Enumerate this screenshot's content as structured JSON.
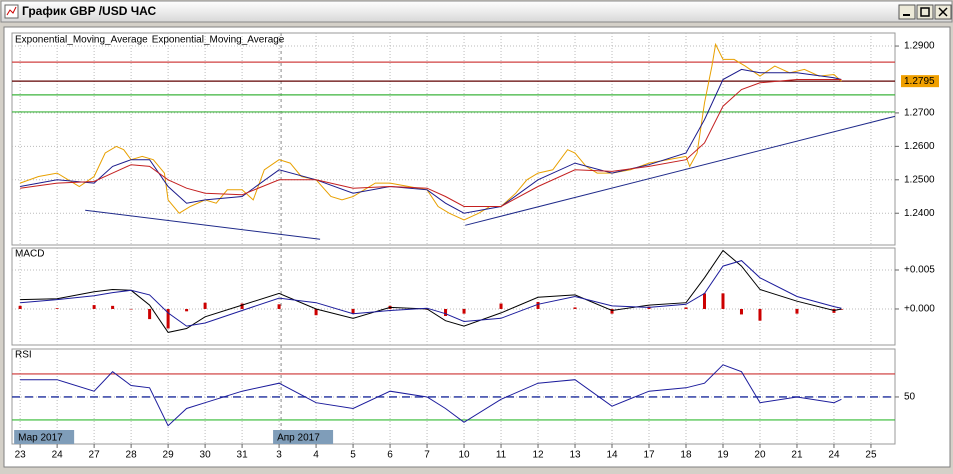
{
  "window": {
    "title": "График GBP /USD  ЧАС"
  },
  "x_axis": {
    "xlim": [
      -0.22,
      23.65
    ],
    "grid": true,
    "xticks": [
      {
        "value": 0,
        "label": "23"
      },
      {
        "value": 1,
        "label": "24"
      },
      {
        "value": 2,
        "label": "27"
      },
      {
        "value": 3,
        "label": "28"
      },
      {
        "value": 4,
        "label": "29"
      },
      {
        "value": 5,
        "label": "30"
      },
      {
        "value": 6,
        "label": "31"
      },
      {
        "value": 7,
        "label": "3"
      },
      {
        "value": 8,
        "label": "4"
      },
      {
        "value": 9,
        "label": "5"
      },
      {
        "value": 10,
        "label": "6"
      },
      {
        "value": 11,
        "label": "7"
      },
      {
        "value": 12,
        "label": "10"
      },
      {
        "value": 13,
        "label": "11"
      },
      {
        "value": 14,
        "label": "12"
      },
      {
        "value": 15,
        "label": "13"
      },
      {
        "value": 16,
        "label": "14"
      },
      {
        "value": 17,
        "label": "17"
      },
      {
        "value": 18,
        "label": "18"
      },
      {
        "value": 19,
        "label": "19"
      },
      {
        "value": 20,
        "label": "20"
      },
      {
        "value": 21,
        "label": "21"
      },
      {
        "value": 22,
        "label": "24"
      },
      {
        "value": 23,
        "label": "25"
      }
    ],
    "period_labels": [
      {
        "value": 0,
        "label": "Мар 2017"
      },
      {
        "value": 7,
        "label": "Апр 2017"
      }
    ]
  },
  "chart_data": [
    {
      "type": "line",
      "ylim": [
        1.2305,
        1.2939
      ],
      "grid": true,
      "yticks": [
        {
          "value": 1.24,
          "label": "1.2400"
        },
        {
          "value": 1.25,
          "label": "1.2500"
        },
        {
          "value": 1.26,
          "label": "1.2600"
        },
        {
          "value": 1.27,
          "label": "1.2700"
        },
        {
          "value": 1.29,
          "label": "1.2900"
        }
      ],
      "series": [
        {
          "color": "#e8a000",
          "x": [
            0,
            0.5,
            1,
            1.3,
            1.6,
            2,
            2.3,
            2.6,
            2.8,
            3,
            3.3,
            3.6,
            3.9,
            4,
            4.3,
            4.6,
            5,
            5.3,
            5.6,
            6,
            6.3,
            6.6,
            7,
            7.3,
            7.6,
            8,
            8.4,
            8.7,
            9,
            9.3,
            9.6,
            10,
            10.5,
            11,
            11.3,
            11.6,
            12,
            12.4,
            12.7,
            13,
            13.4,
            13.7,
            14,
            14.4,
            14.8,
            15,
            15.3,
            15.6,
            16,
            16.5,
            17,
            17.5,
            18,
            18.1,
            18.3,
            18.5,
            18.7,
            18.8,
            19,
            19.3,
            19.6,
            20,
            20.4,
            20.8,
            21.2,
            21.6,
            22,
            22.2
          ],
          "values": [
            1.249,
            1.251,
            1.252,
            1.25,
            1.248,
            1.251,
            1.258,
            1.26,
            1.259,
            1.256,
            1.257,
            1.256,
            1.252,
            1.244,
            1.24,
            1.242,
            1.244,
            1.243,
            1.247,
            1.247,
            1.244,
            1.253,
            1.256,
            1.255,
            1.251,
            1.25,
            1.245,
            1.244,
            1.245,
            1.247,
            1.249,
            1.249,
            1.248,
            1.247,
            1.242,
            1.24,
            1.238,
            1.24,
            1.242,
            1.242,
            1.246,
            1.25,
            1.252,
            1.253,
            1.259,
            1.258,
            1.254,
            1.252,
            1.252,
            1.253,
            1.255,
            1.256,
            1.257,
            1.254,
            1.258,
            1.273,
            1.284,
            1.2905,
            1.286,
            1.286,
            1.284,
            1.281,
            1.284,
            1.282,
            1.283,
            1.281,
            1.2815,
            1.2795
          ]
        },
        {
          "name": "Exponential_Moving_Average",
          "color": "#1c1c8c",
          "x": [
            0,
            1,
            2,
            2.5,
            3,
            3.5,
            4,
            4.5,
            5,
            6,
            7,
            8,
            9,
            10,
            11,
            11.5,
            12,
            13,
            14,
            15,
            16,
            17,
            18,
            18.5,
            19,
            19.5,
            20,
            21,
            22,
            22.2
          ],
          "values": [
            1.248,
            1.25,
            1.249,
            1.254,
            1.256,
            1.256,
            1.248,
            1.243,
            1.244,
            1.245,
            1.253,
            1.25,
            1.246,
            1.248,
            1.247,
            1.243,
            1.24,
            1.242,
            1.25,
            1.255,
            1.252,
            1.2545,
            1.258,
            1.268,
            1.28,
            1.283,
            1.282,
            1.282,
            1.2805,
            1.28
          ]
        },
        {
          "name": "Exponential_Moving_Average",
          "color": "#c42020",
          "x": [
            0,
            1,
            2,
            2.5,
            3,
            3.5,
            4,
            4.5,
            5,
            6,
            7,
            8,
            9,
            10,
            11,
            11.5,
            12,
            13,
            14,
            15,
            16,
            17,
            18,
            18.5,
            19,
            19.5,
            20,
            21,
            22,
            22.2
          ],
          "values": [
            1.2475,
            1.249,
            1.2495,
            1.252,
            1.2545,
            1.254,
            1.25,
            1.2475,
            1.246,
            1.2455,
            1.25,
            1.25,
            1.2475,
            1.248,
            1.2475,
            1.245,
            1.242,
            1.242,
            1.248,
            1.253,
            1.2525,
            1.254,
            1.256,
            1.261,
            1.272,
            1.277,
            1.279,
            1.28,
            1.28,
            1.28
          ]
        }
      ],
      "levels": [
        {
          "value": 1.2852,
          "color": "#d04040"
        },
        {
          "value": 1.2795,
          "color": "#600000"
        },
        {
          "value": 1.2754,
          "color": "#3cb43c"
        },
        {
          "value": 1.2703,
          "color": "#3cb43c"
        }
      ],
      "last_price": 1.2795,
      "last_price_color": "#f0a000",
      "trendline_color": "#1f2a8a",
      "trendlines": [
        {
          "x": [
            1.76,
            8.11
          ],
          "y": [
            1.2409,
            1.2322
          ]
        },
        {
          "x": [
            12.03,
            23.65
          ],
          "y": [
            1.2364,
            1.269
          ]
        }
      ]
    },
    {
      "type": "macd",
      "title": "MACD",
      "ylim": [
        -0.00462,
        0.00782
      ],
      "grid": true,
      "yticks": [
        {
          "value": 0.005,
          "label": "+0.005"
        },
        {
          "value": 0,
          "label": "+0.000"
        }
      ],
      "x": [
        0,
        1,
        2,
        2.5,
        3,
        3.5,
        4,
        4.5,
        5,
        6,
        7,
        8,
        9,
        10,
        11,
        11.5,
        12,
        13,
        14,
        15,
        16,
        17,
        18,
        18.5,
        19,
        19.5,
        20,
        21,
        22,
        22.2
      ],
      "series": [
        {
          "color": "#000000",
          "values": [
            0.0012,
            0.0013,
            0.0022,
            0.0025,
            0.0024,
            0.0005,
            -0.003,
            -0.0025,
            -0.001,
            0.0005,
            0.002,
            0,
            -0.0012,
            0.0002,
            0,
            -0.0015,
            -0.0022,
            -0.0005,
            0.0015,
            0.0018,
            -0.0002,
            0.0005,
            0.0008,
            0.004,
            0.0075,
            0.0055,
            0.0025,
            0.001,
            -0.0002,
            0
          ]
        },
        {
          "color": "#1c1c9c",
          "values": [
            0.0008,
            0.0012,
            0.0017,
            0.0021,
            0.0024,
            0.0018,
            -0.0005,
            -0.0022,
            -0.0018,
            -0.0002,
            0.0014,
            0.0008,
            -0.0006,
            -0.0002,
            0.0001,
            -0.0006,
            -0.0016,
            -0.0012,
            0.0006,
            0.0016,
            0.0004,
            0.0002,
            0.0006,
            0.002,
            0.0055,
            0.0062,
            0.004,
            0.0016,
            0.0003,
            0.0001
          ]
        }
      ],
      "histogram": {
        "color": "#cc0000",
        "values": [
          0.0004,
          0.0001,
          0.0005,
          0.0004,
          0,
          -0.0013,
          -0.0025,
          -0.0003,
          0.0008,
          0.0007,
          0.0006,
          -0.0008,
          -0.0006,
          0.0004,
          -0.0001,
          -0.0009,
          -0.0006,
          0.0007,
          0.0009,
          0.0002,
          -0.0006,
          0.0003,
          0.0002,
          0.002,
          0.002,
          -0.0007,
          -0.0015,
          -0.0006,
          -0.0005,
          -0.0001
        ]
      }
    },
    {
      "type": "line",
      "title": "RSI",
      "ylim": [
        9.1,
        91.7
      ],
      "grid": true,
      "yticks": [
        50
      ],
      "series": [
        {
          "color": "#1c1c9c",
          "x": [
            0,
            1,
            2,
            2.5,
            3,
            3.5,
            4,
            4.5,
            5,
            6,
            7,
            8,
            9,
            10,
            11,
            11.5,
            12,
            13,
            14,
            15,
            16,
            17,
            18,
            18.5,
            19,
            19.5,
            20,
            21,
            22,
            22.2
          ],
          "values": [
            65,
            65,
            55,
            72,
            60,
            58,
            25,
            40,
            45,
            55,
            62,
            45,
            40,
            55,
            50,
            40,
            28,
            48,
            62,
            65,
            42,
            55,
            58,
            62,
            78,
            72,
            45,
            50,
            45,
            48
          ]
        }
      ],
      "levels": [
        {
          "value": 70,
          "color": "#cc3333"
        },
        {
          "value": 50,
          "color": "#1c2c9c",
          "dashed": true
        },
        {
          "value": 30,
          "color": "#33bb33"
        }
      ]
    }
  ]
}
